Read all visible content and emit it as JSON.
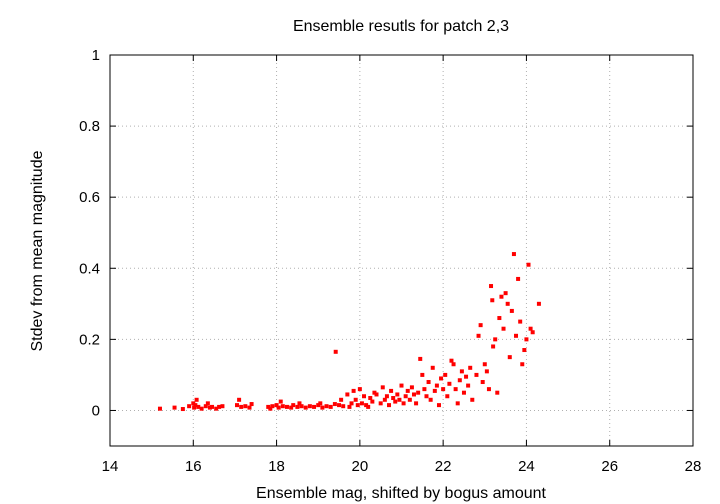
{
  "chart_data": {
    "type": "scatter",
    "title": "Ensemble resutls for patch 2,3",
    "xlabel": "Ensemble mag, shifted by bogus amount",
    "ylabel": "Stdev from mean magnitude",
    "xlim": [
      14,
      28
    ],
    "ylim": [
      -0.1,
      1
    ],
    "xticks": [
      "14",
      "16",
      "18",
      "20",
      "22",
      "24",
      "26",
      "28"
    ],
    "xtick_values": [
      14,
      16,
      18,
      20,
      22,
      24,
      26,
      28
    ],
    "yticks": [
      "0",
      "0.2",
      "0.4",
      "0.6",
      "0.8",
      "1"
    ],
    "ytick_values": [
      0,
      0.2,
      0.4,
      0.6,
      0.8,
      1
    ],
    "grid": true,
    "marker_color": "#ff0000",
    "series": [
      {
        "points": [
          [
            15.2,
            0.005
          ],
          [
            15.55,
            0.008
          ],
          [
            15.75,
            0.004
          ],
          [
            15.9,
            0.012
          ],
          [
            16.0,
            0.02
          ],
          [
            16.02,
            0.008
          ],
          [
            16.05,
            0.015
          ],
          [
            16.08,
            0.03
          ],
          [
            16.12,
            0.01
          ],
          [
            16.2,
            0.005
          ],
          [
            16.3,
            0.012
          ],
          [
            16.35,
            0.02
          ],
          [
            16.4,
            0.008
          ],
          [
            16.45,
            0.01
          ],
          [
            16.55,
            0.005
          ],
          [
            16.62,
            0.01
          ],
          [
            16.7,
            0.012
          ],
          [
            17.05,
            0.015
          ],
          [
            17.1,
            0.03
          ],
          [
            17.15,
            0.01
          ],
          [
            17.25,
            0.012
          ],
          [
            17.35,
            0.008
          ],
          [
            17.4,
            0.018
          ],
          [
            17.8,
            0.01
          ],
          [
            17.85,
            0.005
          ],
          [
            17.9,
            0.012
          ],
          [
            18.0,
            0.015
          ],
          [
            18.05,
            0.008
          ],
          [
            18.1,
            0.025
          ],
          [
            18.15,
            0.012
          ],
          [
            18.25,
            0.01
          ],
          [
            18.35,
            0.008
          ],
          [
            18.4,
            0.015
          ],
          [
            18.5,
            0.01
          ],
          [
            18.55,
            0.02
          ],
          [
            18.6,
            0.012
          ],
          [
            18.7,
            0.008
          ],
          [
            18.8,
            0.012
          ],
          [
            18.9,
            0.01
          ],
          [
            19.0,
            0.015
          ],
          [
            19.05,
            0.02
          ],
          [
            19.1,
            0.008
          ],
          [
            19.2,
            0.012
          ],
          [
            19.3,
            0.01
          ],
          [
            19.4,
            0.018
          ],
          [
            19.42,
            0.165
          ],
          [
            19.5,
            0.015
          ],
          [
            19.55,
            0.03
          ],
          [
            19.6,
            0.012
          ],
          [
            19.7,
            0.045
          ],
          [
            19.75,
            0.01
          ],
          [
            19.8,
            0.02
          ],
          [
            19.85,
            0.055
          ],
          [
            19.9,
            0.03
          ],
          [
            19.95,
            0.015
          ],
          [
            20.0,
            0.06
          ],
          [
            20.05,
            0.02
          ],
          [
            20.1,
            0.04
          ],
          [
            20.15,
            0.015
          ],
          [
            20.2,
            0.01
          ],
          [
            20.25,
            0.035
          ],
          [
            20.3,
            0.025
          ],
          [
            20.35,
            0.05
          ],
          [
            20.4,
            0.045
          ],
          [
            20.5,
            0.02
          ],
          [
            20.55,
            0.065
          ],
          [
            20.6,
            0.03
          ],
          [
            20.65,
            0.04
          ],
          [
            20.7,
            0.015
          ],
          [
            20.75,
            0.055
          ],
          [
            20.8,
            0.035
          ],
          [
            20.85,
            0.025
          ],
          [
            20.9,
            0.045
          ],
          [
            20.95,
            0.03
          ],
          [
            21.0,
            0.07
          ],
          [
            21.05,
            0.02
          ],
          [
            21.1,
            0.04
          ],
          [
            21.15,
            0.055
          ],
          [
            21.2,
            0.03
          ],
          [
            21.25,
            0.065
          ],
          [
            21.3,
            0.045
          ],
          [
            21.35,
            0.02
          ],
          [
            21.4,
            0.05
          ],
          [
            21.45,
            0.145
          ],
          [
            21.5,
            0.1
          ],
          [
            21.55,
            0.06
          ],
          [
            21.6,
            0.04
          ],
          [
            21.65,
            0.08
          ],
          [
            21.7,
            0.03
          ],
          [
            21.75,
            0.12
          ],
          [
            21.8,
            0.055
          ],
          [
            21.85,
            0.07
          ],
          [
            21.9,
            0.015
          ],
          [
            21.95,
            0.09
          ],
          [
            22.0,
            0.06
          ],
          [
            22.05,
            0.1
          ],
          [
            22.1,
            0.04
          ],
          [
            22.15,
            0.075
          ],
          [
            22.2,
            0.14
          ],
          [
            22.25,
            0.13
          ],
          [
            22.3,
            0.06
          ],
          [
            22.35,
            0.02
          ],
          [
            22.4,
            0.085
          ],
          [
            22.45,
            0.11
          ],
          [
            22.5,
            0.05
          ],
          [
            22.55,
            0.095
          ],
          [
            22.6,
            0.07
          ],
          [
            22.65,
            0.12
          ],
          [
            22.7,
            0.03
          ],
          [
            22.8,
            0.1
          ],
          [
            22.85,
            0.21
          ],
          [
            22.9,
            0.24
          ],
          [
            22.95,
            0.08
          ],
          [
            23.0,
            0.13
          ],
          [
            23.05,
            0.11
          ],
          [
            23.1,
            0.06
          ],
          [
            23.15,
            0.35
          ],
          [
            23.18,
            0.31
          ],
          [
            23.2,
            0.18
          ],
          [
            23.25,
            0.2
          ],
          [
            23.3,
            0.05
          ],
          [
            23.35,
            0.26
          ],
          [
            23.4,
            0.32
          ],
          [
            23.45,
            0.23
          ],
          [
            23.5,
            0.33
          ],
          [
            23.55,
            0.3
          ],
          [
            23.6,
            0.15
          ],
          [
            23.65,
            0.28
          ],
          [
            23.7,
            0.44
          ],
          [
            23.75,
            0.21
          ],
          [
            23.8,
            0.37
          ],
          [
            23.85,
            0.25
          ],
          [
            23.9,
            0.13
          ],
          [
            23.95,
            0.17
          ],
          [
            24.0,
            0.2
          ],
          [
            24.05,
            0.41
          ],
          [
            24.1,
            0.23
          ],
          [
            24.15,
            0.22
          ],
          [
            24.3,
            0.3
          ]
        ]
      }
    ]
  }
}
